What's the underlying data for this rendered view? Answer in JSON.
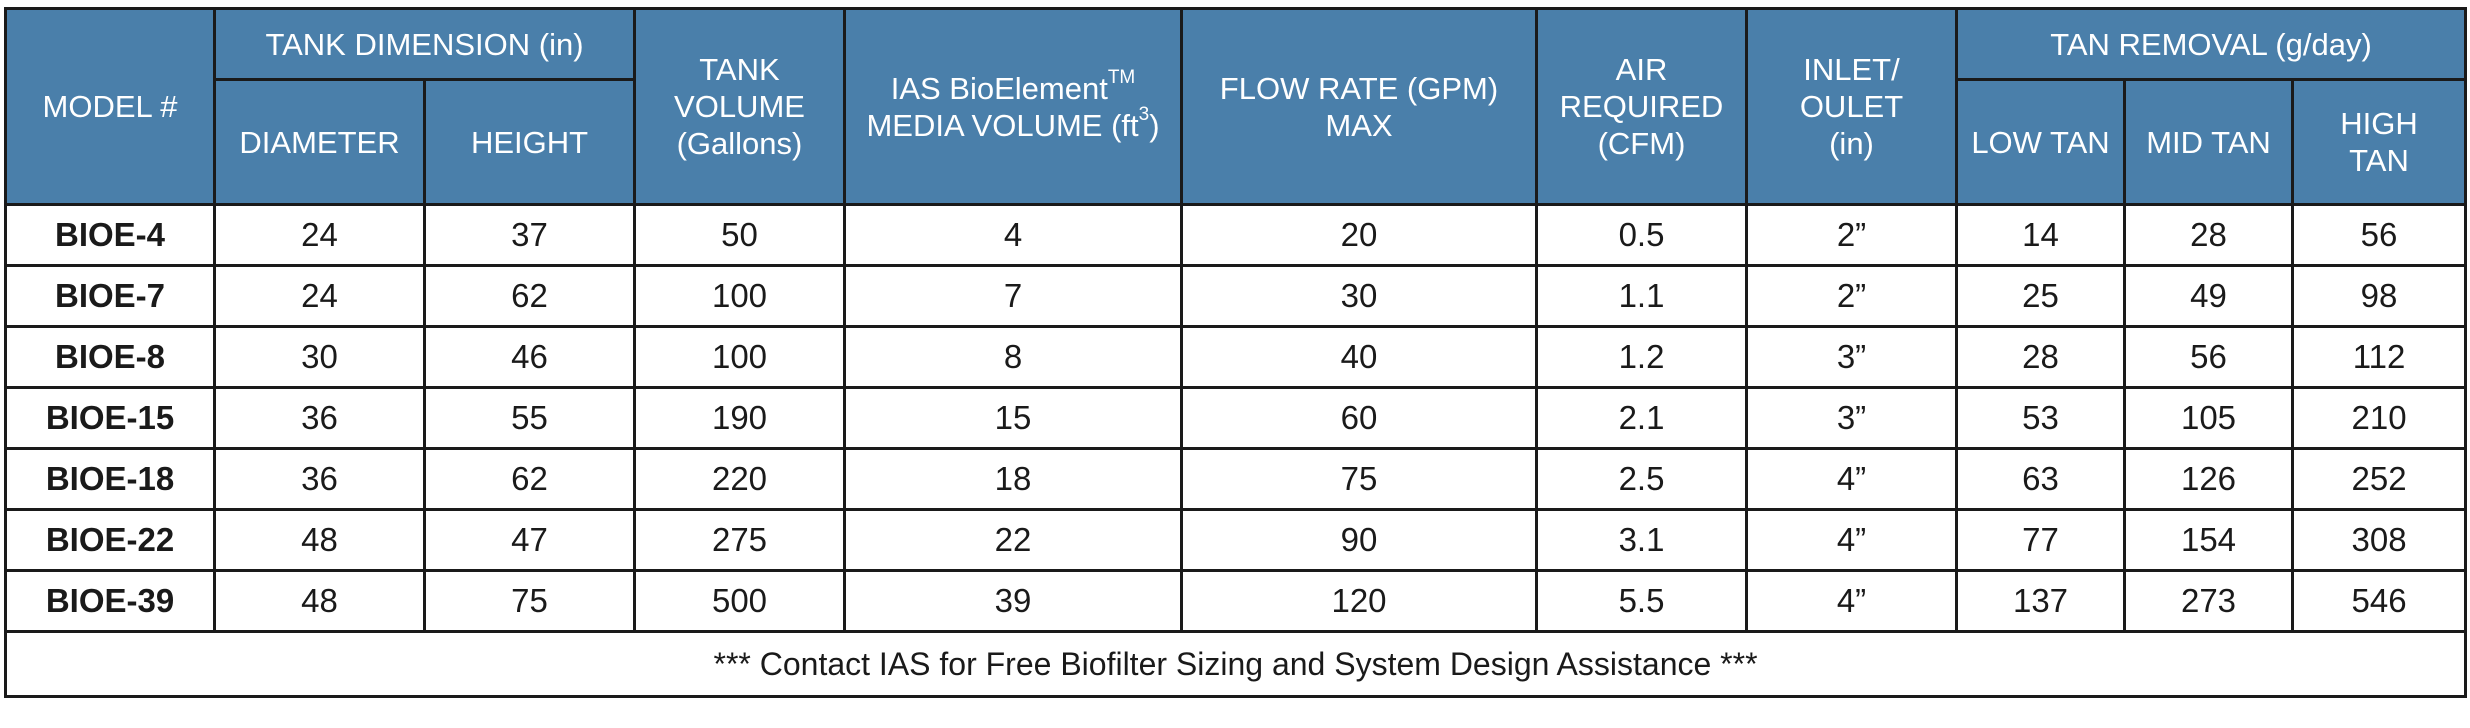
{
  "header": {
    "model": "MODEL #",
    "tank_dimension": "TANK DIMENSION (in)",
    "diameter": "DIAMETER",
    "height": "HEIGHT",
    "tank_volume_line1": "TANK",
    "tank_volume_line2": "VOLUME",
    "tank_volume_line3": "(Gallons)",
    "media_line1_prefix": "IAS BioElement",
    "media_line1_tm": "TM",
    "media_line2_prefix": "MEDIA VOLUME (ft",
    "media_line2_sup": "3",
    "media_line2_suffix": ")",
    "flow_line1": "FLOW RATE (GPM)",
    "flow_line2": "MAX",
    "air_line1": "AIR",
    "air_line2": "REQUIRED",
    "air_line3": "(CFM)",
    "inlet_line1": "INLET/",
    "inlet_line2": "OULET",
    "inlet_line3": "(in)",
    "tan_removal": "TAN REMOVAL (g/day)",
    "low_tan": "LOW TAN",
    "mid_tan": "MID TAN",
    "high_tan_line1": "HIGH",
    "high_tan_line2": "TAN"
  },
  "rows": [
    {
      "model": "BIOE-4",
      "diameter": "24",
      "height": "37",
      "volume": "50",
      "media": "4",
      "flow": "20",
      "air": "0.5",
      "inlet": "2”",
      "low": "14",
      "mid": "28",
      "high": "56"
    },
    {
      "model": "BIOE-7",
      "diameter": "24",
      "height": "62",
      "volume": "100",
      "media": "7",
      "flow": "30",
      "air": "1.1",
      "inlet": "2”",
      "low": "25",
      "mid": "49",
      "high": "98"
    },
    {
      "model": "BIOE-8",
      "diameter": "30",
      "height": "46",
      "volume": "100",
      "media": "8",
      "flow": "40",
      "air": "1.2",
      "inlet": "3”",
      "low": "28",
      "mid": "56",
      "high": "112"
    },
    {
      "model": "BIOE-15",
      "diameter": "36",
      "height": "55",
      "volume": "190",
      "media": "15",
      "flow": "60",
      "air": "2.1",
      "inlet": "3”",
      "low": "53",
      "mid": "105",
      "high": "210"
    },
    {
      "model": "BIOE-18",
      "diameter": "36",
      "height": "62",
      "volume": "220",
      "media": "18",
      "flow": "75",
      "air": "2.5",
      "inlet": "4”",
      "low": "63",
      "mid": "126",
      "high": "252"
    },
    {
      "model": "BIOE-22",
      "diameter": "48",
      "height": "47",
      "volume": "275",
      "media": "22",
      "flow": "90",
      "air": "3.1",
      "inlet": "4”",
      "low": "77",
      "mid": "154",
      "high": "308"
    },
    {
      "model": "BIOE-39",
      "diameter": "48",
      "height": "75",
      "volume": "500",
      "media": "39",
      "flow": "120",
      "air": "5.5",
      "inlet": "4”",
      "low": "137",
      "mid": "273",
      "high": "546"
    }
  ],
  "footer_note": "*** Contact IAS for Free Biofilter Sizing and System Design Assistance ***",
  "colors": {
    "header_bg": "#4a7faa",
    "header_text": "#ffffff",
    "border": "#1a1a1a",
    "body_text": "#1a1a1a"
  }
}
